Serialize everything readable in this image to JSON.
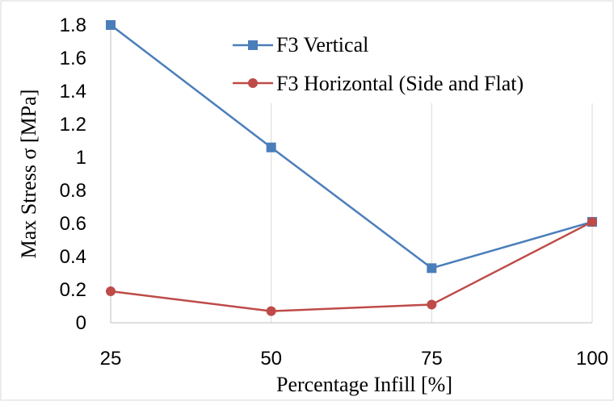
{
  "chart_data": {
    "type": "line",
    "x": [
      25,
      50,
      75,
      100
    ],
    "series": [
      {
        "name": "F3 Vertical",
        "color": "#4a7ebb",
        "marker": "square",
        "values": [
          1.81,
          1.06,
          0.33,
          0.61
        ]
      },
      {
        "name": "F3 Horizontal (Side and Flat)",
        "color": "#be4b48",
        "marker": "circle",
        "values": [
          0.19,
          0.07,
          0.11,
          0.61
        ]
      }
    ],
    "xlabel": "Percentage  Infill [%]",
    "ylabel": "Max Stress σ [MPa]",
    "ylim": [
      0,
      1.8
    ],
    "yticks": [
      "0",
      "0.2",
      "0.4",
      "0.6",
      "0.8",
      "1",
      "1.2",
      "1.4",
      "1.6",
      "1.8"
    ],
    "xticks": [
      "25",
      "50",
      "75",
      "100"
    ],
    "grid": "vertical",
    "legend_position": "top-right"
  }
}
